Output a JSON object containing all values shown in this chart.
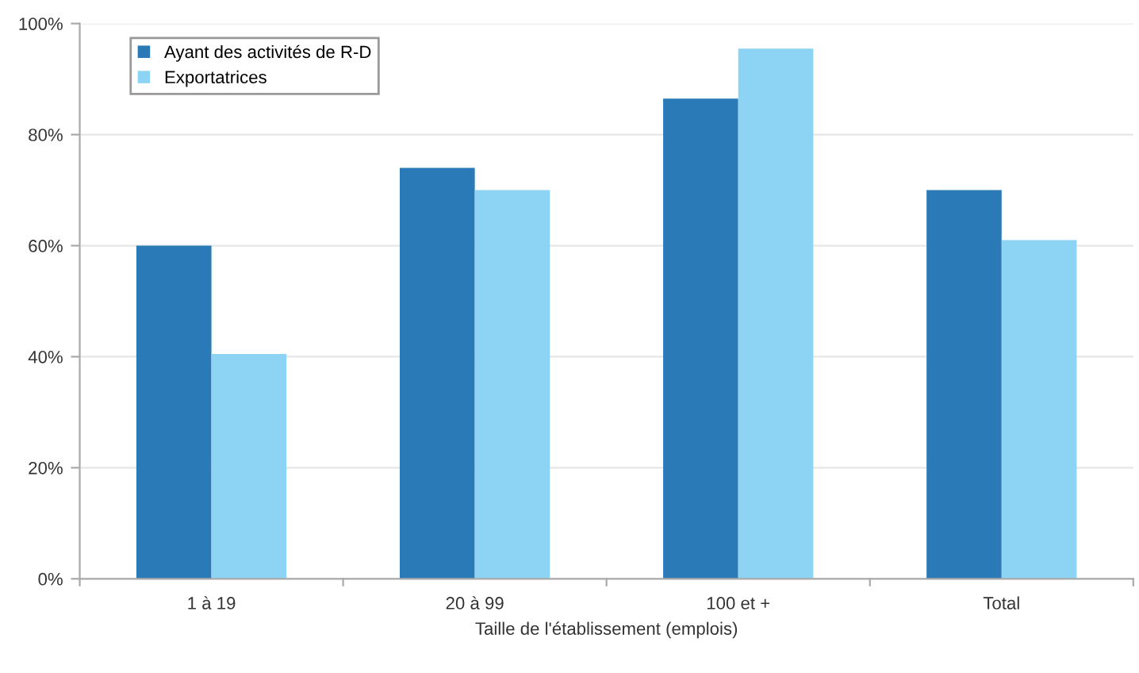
{
  "chart_data": {
    "type": "bar",
    "xlabel": "Taille de l'établissement (emplois)",
    "categories": [
      "1 à 19",
      "20 à 99",
      "100 et +",
      "Total"
    ],
    "series": [
      {
        "name": "Ayant des activités de R-D",
        "color": "#2a7ab8",
        "values": [
          60,
          74,
          86.5,
          70
        ]
      },
      {
        "name": "Exportatrices",
        "color": "#8dd3f3",
        "values": [
          40.5,
          70,
          95.5,
          61
        ]
      }
    ],
    "ylim": [
      0,
      100
    ],
    "yticks": [
      {
        "value": 0,
        "label": "0%"
      },
      {
        "value": 20,
        "label": "20%"
      },
      {
        "value": 40,
        "label": "40%"
      },
      {
        "value": 60,
        "label": "60%"
      },
      {
        "value": 80,
        "label": "80%"
      },
      {
        "value": 100,
        "label": "100%"
      }
    ],
    "grid": "y",
    "legend": "top left"
  }
}
